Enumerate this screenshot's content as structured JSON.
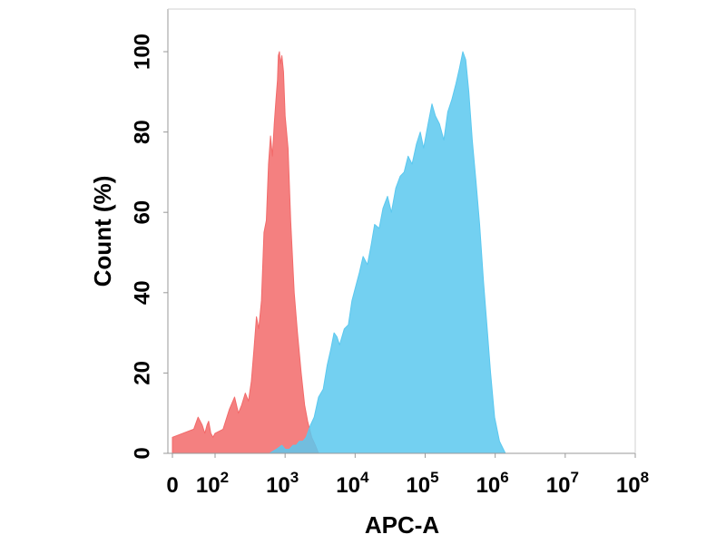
{
  "chart_data": {
    "type": "area",
    "xlabel": "APC-A",
    "ylabel": "Count  (%)",
    "x_scale": "log",
    "xlim": [
      0,
      100000000
    ],
    "ylim": [
      0,
      100
    ],
    "x_ticks": [
      {
        "value": 0,
        "base": "0",
        "exp": ""
      },
      {
        "value": 100,
        "base": "10",
        "exp": "2"
      },
      {
        "value": 1000,
        "base": "10",
        "exp": "3"
      },
      {
        "value": 10000,
        "base": "10",
        "exp": "4"
      },
      {
        "value": 100000,
        "base": "10",
        "exp": "5"
      },
      {
        "value": 1000000,
        "base": "10",
        "exp": "6"
      },
      {
        "value": 10000000,
        "base": "10",
        "exp": "7"
      },
      {
        "value": 100000000,
        "base": "10",
        "exp": "8"
      }
    ],
    "y_ticks": [
      "0",
      "20",
      "40",
      "60",
      "80",
      "100"
    ],
    "grid": false,
    "series": [
      {
        "color": "#f26a6a",
        "points": [
          [
            0,
            4
          ],
          [
            10,
            6
          ],
          [
            16,
            9
          ],
          [
            25,
            7
          ],
          [
            33,
            5
          ],
          [
            42,
            7
          ],
          [
            50,
            8
          ],
          [
            63,
            5
          ],
          [
            80,
            4
          ],
          [
            100,
            5
          ],
          [
            130,
            6
          ],
          [
            160,
            11
          ],
          [
            190,
            14
          ],
          [
            215,
            10
          ],
          [
            240,
            12
          ],
          [
            270,
            15
          ],
          [
            300,
            13
          ],
          [
            330,
            18
          ],
          [
            360,
            26
          ],
          [
            390,
            34
          ],
          [
            420,
            31
          ],
          [
            460,
            38
          ],
          [
            500,
            55
          ],
          [
            540,
            58
          ],
          [
            580,
            72
          ],
          [
            620,
            79
          ],
          [
            660,
            74
          ],
          [
            700,
            82
          ],
          [
            740,
            88
          ],
          [
            780,
            93
          ],
          [
            800,
            99
          ],
          [
            830,
            100
          ],
          [
            860,
            97
          ],
          [
            900,
            99
          ],
          [
            950,
            95
          ],
          [
            1000,
            84
          ],
          [
            1100,
            76
          ],
          [
            1200,
            58
          ],
          [
            1350,
            40
          ],
          [
            1500,
            30
          ],
          [
            1700,
            20
          ],
          [
            1900,
            12
          ],
          [
            2100,
            8
          ],
          [
            2400,
            4
          ],
          [
            2700,
            2
          ],
          [
            3000,
            0
          ]
        ]
      },
      {
        "color": "#5bc8ef",
        "points": [
          [
            600,
            0
          ],
          [
            750,
            1
          ],
          [
            900,
            2
          ],
          [
            1000,
            1
          ],
          [
            1150,
            1
          ],
          [
            1300,
            2
          ],
          [
            1450,
            2
          ],
          [
            1600,
            3
          ],
          [
            1800,
            3
          ],
          [
            2000,
            4
          ],
          [
            2300,
            7
          ],
          [
            2600,
            9
          ],
          [
            3000,
            14
          ],
          [
            3500,
            16
          ],
          [
            4000,
            22
          ],
          [
            4500,
            26
          ],
          [
            5000,
            30
          ],
          [
            5500,
            29
          ],
          [
            6000,
            27
          ],
          [
            7000,
            31
          ],
          [
            8000,
            32
          ],
          [
            9000,
            38
          ],
          [
            10000,
            41
          ],
          [
            11500,
            45
          ],
          [
            13000,
            49
          ],
          [
            15000,
            47
          ],
          [
            17000,
            52
          ],
          [
            19000,
            57
          ],
          [
            22000,
            56
          ],
          [
            25000,
            61
          ],
          [
            29000,
            64
          ],
          [
            33000,
            60
          ],
          [
            38000,
            66
          ],
          [
            44000,
            69
          ],
          [
            50000,
            70
          ],
          [
            57000,
            74
          ],
          [
            65000,
            72
          ],
          [
            75000,
            77
          ],
          [
            85000,
            80
          ],
          [
            95000,
            76
          ],
          [
            110000,
            82
          ],
          [
            125000,
            87
          ],
          [
            140000,
            84
          ],
          [
            160000,
            82
          ],
          [
            185000,
            78
          ],
          [
            210000,
            85
          ],
          [
            240000,
            88
          ],
          [
            275000,
            92
          ],
          [
            310000,
            96
          ],
          [
            345000,
            100
          ],
          [
            380000,
            98
          ],
          [
            420000,
            90
          ],
          [
            470000,
            78
          ],
          [
            530000,
            68
          ],
          [
            600000,
            57
          ],
          [
            680000,
            43
          ],
          [
            760000,
            32
          ],
          [
            860000,
            20
          ],
          [
            980000,
            9
          ],
          [
            1150000,
            3
          ],
          [
            1400000,
            0
          ]
        ]
      }
    ]
  }
}
